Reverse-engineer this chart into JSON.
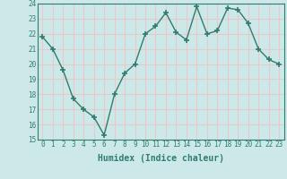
{
  "x": [
    0,
    1,
    2,
    3,
    4,
    5,
    6,
    7,
    8,
    9,
    10,
    11,
    12,
    13,
    14,
    15,
    16,
    17,
    18,
    19,
    20,
    21,
    22,
    23
  ],
  "y": [
    21.8,
    21.0,
    19.6,
    17.7,
    17.0,
    16.5,
    15.3,
    18.0,
    19.4,
    20.0,
    22.0,
    22.5,
    23.4,
    22.1,
    21.6,
    23.8,
    22.0,
    22.2,
    23.7,
    23.6,
    22.7,
    21.0,
    20.3,
    20.0
  ],
  "line_color": "#2e7d6e",
  "marker": "+",
  "marker_size": 4,
  "marker_lw": 1.2,
  "bg_color": "#cde8e8",
  "grid_color": "#e8c8c8",
  "xlabel": "Humidex (Indice chaleur)",
  "ylim": [
    15,
    24
  ],
  "xlim": [
    -0.5,
    23.5
  ],
  "yticks": [
    15,
    16,
    17,
    18,
    19,
    20,
    21,
    22,
    23,
    24
  ],
  "xticks": [
    0,
    1,
    2,
    3,
    4,
    5,
    6,
    7,
    8,
    9,
    10,
    11,
    12,
    13,
    14,
    15,
    16,
    17,
    18,
    19,
    20,
    21,
    22,
    23
  ],
  "axis_color": "#2e7d6e",
  "tick_color": "#2e7d6e",
  "spine_color": "#2e7d6e",
  "xlabel_fontsize": 7,
  "tick_fontsize": 5.5,
  "linewidth": 1.0
}
